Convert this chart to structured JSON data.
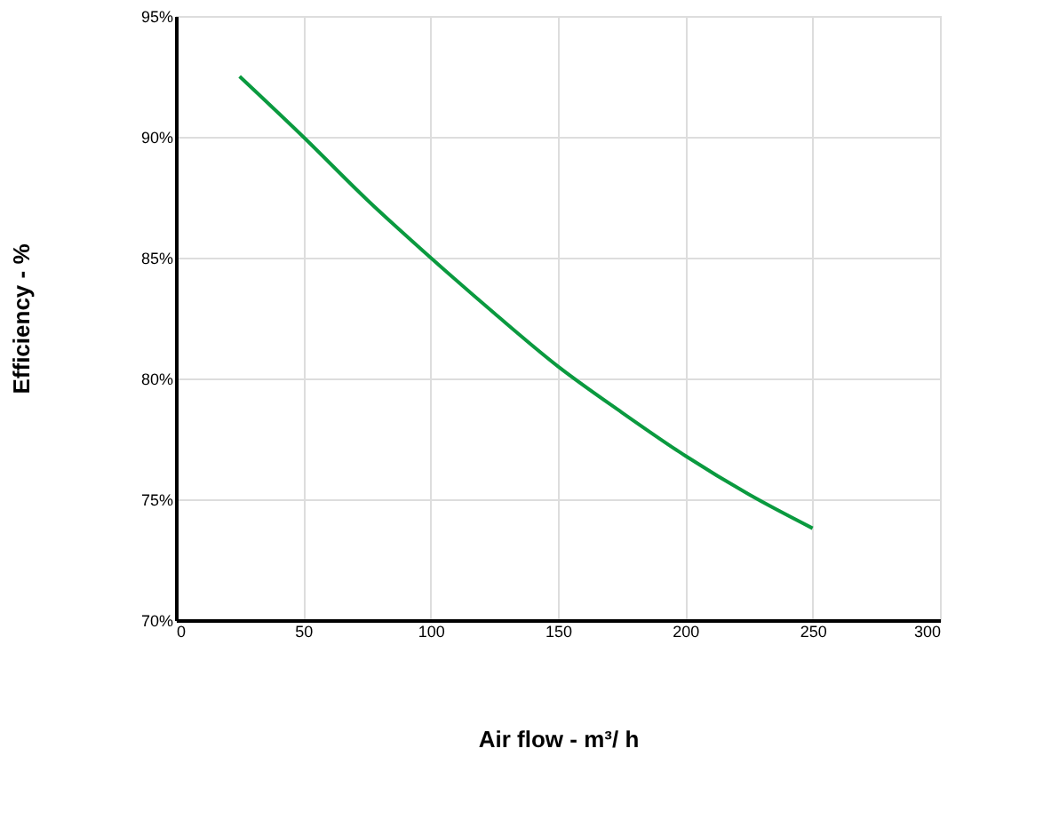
{
  "chart_data": {
    "type": "line",
    "xlabel": "Air flow - m³/ h",
    "ylabel": "Efficiency - %",
    "series": [
      {
        "color": "#0a9a3f",
        "x": [
          25,
          50,
          75,
          100,
          125,
          150,
          175,
          200,
          225,
          250
        ],
        "values": [
          92.5,
          90,
          87.4,
          85,
          82.7,
          80.5,
          78.6,
          76.8,
          75.2,
          73.8
        ]
      }
    ],
    "xlim": [
      0,
      300
    ],
    "xticks": [
      0,
      50,
      100,
      150,
      200,
      250,
      300
    ],
    "ylim": [
      70,
      95
    ],
    "yticks": [
      {
        "value": 70,
        "label": "70%"
      },
      {
        "value": 75,
        "label": "75%"
      },
      {
        "value": 80,
        "label": "80%"
      },
      {
        "value": 85,
        "label": "85%"
      },
      {
        "value": 90,
        "label": "90%"
      },
      {
        "value": 95,
        "label": "95%"
      }
    ],
    "grid": true,
    "marker": "none",
    "line_style": "solid"
  }
}
